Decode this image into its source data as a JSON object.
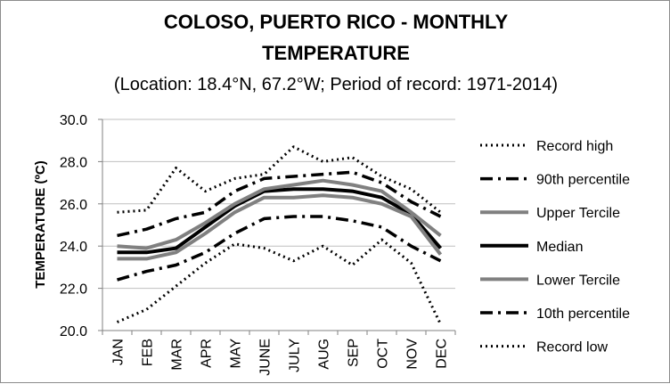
{
  "chart_data": {
    "type": "line",
    "title_line1": "COLOSO, PUERTO RICO - MONTHLY",
    "title_line2": "TEMPERATURE",
    "subtitle": "(Location: 18.4°N, 67.2°W; Period of record: 1971-2014)",
    "ylabel": "TEMPERATURE (ºC)",
    "xlabel": "",
    "categories": [
      "JAN",
      "FEB",
      "MAR",
      "APR",
      "MAY",
      "JUNE",
      "JULY",
      "AUG",
      "SEP",
      "OCT",
      "NOV",
      "DEC"
    ],
    "ylim": [
      20,
      30
    ],
    "yticks": [
      "20.0",
      "22.0",
      "24.0",
      "26.0",
      "28.0",
      "30.0"
    ],
    "grid": true,
    "legend_position": "right",
    "series": [
      {
        "name": "Record high",
        "style": "dotted",
        "color": "#000000",
        "values": [
          25.6,
          25.7,
          27.7,
          26.6,
          27.2,
          27.4,
          28.7,
          28.0,
          28.2,
          27.3,
          26.7,
          25.6
        ]
      },
      {
        "name": "90th percentile",
        "style": "dashdot",
        "color": "#000000",
        "values": [
          24.5,
          24.8,
          25.3,
          25.6,
          26.6,
          27.2,
          27.3,
          27.4,
          27.5,
          27.0,
          26.1,
          25.4
        ]
      },
      {
        "name": "Upper Tercile",
        "style": "solid-gray",
        "color": "#808080",
        "values": [
          24.0,
          23.9,
          24.3,
          25.1,
          26.0,
          26.7,
          26.9,
          27.1,
          26.9,
          26.6,
          25.6,
          24.5
        ]
      },
      {
        "name": "Median",
        "style": "solid-black",
        "color": "#000000",
        "values": [
          23.7,
          23.7,
          23.9,
          24.9,
          25.9,
          26.6,
          26.7,
          26.7,
          26.6,
          26.3,
          25.5,
          23.9
        ]
      },
      {
        "name": "Lower Tercile",
        "style": "solid-gray",
        "color": "#808080",
        "values": [
          23.4,
          23.4,
          23.7,
          24.6,
          25.6,
          26.3,
          26.3,
          26.4,
          26.3,
          26.0,
          25.4,
          23.6
        ]
      },
      {
        "name": "10th percentile",
        "style": "dashdot",
        "color": "#000000",
        "values": [
          22.4,
          22.8,
          23.1,
          23.7,
          24.6,
          25.3,
          25.4,
          25.4,
          25.2,
          24.9,
          24.0,
          23.3
        ]
      },
      {
        "name": "Record low",
        "style": "dotted",
        "color": "#000000",
        "values": [
          20.4,
          21.0,
          22.1,
          23.2,
          24.1,
          23.9,
          23.3,
          24.0,
          23.1,
          24.3,
          23.2,
          20.3
        ]
      }
    ]
  }
}
